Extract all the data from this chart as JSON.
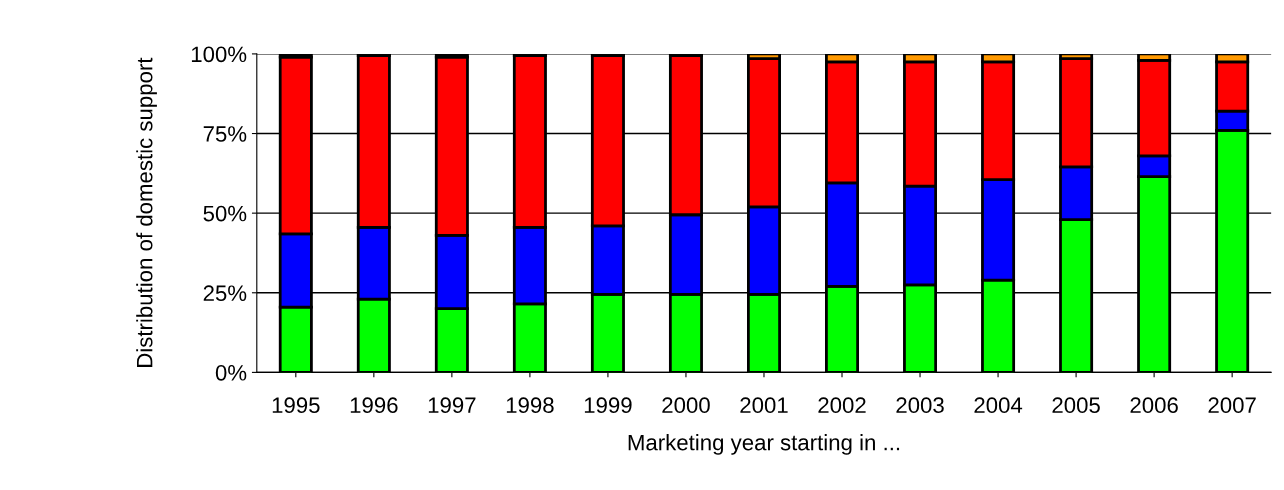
{
  "chart_data": {
    "type": "bar",
    "stacked": true,
    "xlabel": "Marketing year starting in ...",
    "ylabel": "Distribution of domestic support",
    "categories": [
      "1995",
      "1996",
      "1997",
      "1998",
      "1999",
      "2000",
      "2001",
      "2002",
      "2003",
      "2004",
      "2005",
      "2006",
      "2007"
    ],
    "series": [
      {
        "color": "#00ff00",
        "values": [
          20.5,
          23,
          20,
          21.5,
          24.5,
          24.5,
          24.5,
          27,
          27.5,
          29,
          48,
          61.5,
          76
        ]
      },
      {
        "color": "#0000ff",
        "values": [
          23,
          22.5,
          23,
          24,
          21.5,
          25,
          27.5,
          32.5,
          31,
          31.5,
          16.5,
          6.5,
          6
        ]
      },
      {
        "color": "#ff0000",
        "values": [
          55.5,
          54,
          56,
          54,
          53.5,
          50,
          46.5,
          38,
          39,
          37,
          34,
          30,
          15.5
        ]
      },
      {
        "color": "#ff9900",
        "values": [
          0.5,
          0.5,
          0.5,
          0.5,
          0.5,
          0.5,
          1.5,
          2.5,
          2.5,
          2.5,
          1.5,
          2,
          2.5
        ]
      }
    ],
    "ylim": [
      0,
      100
    ],
    "yticks": [
      {
        "value": 0,
        "label": "0%"
      },
      {
        "value": 25,
        "label": "25%"
      },
      {
        "value": 50,
        "label": "50%"
      },
      {
        "value": 75,
        "label": "75%"
      },
      {
        "value": 100,
        "label": "100%"
      }
    ],
    "grid": "y"
  }
}
